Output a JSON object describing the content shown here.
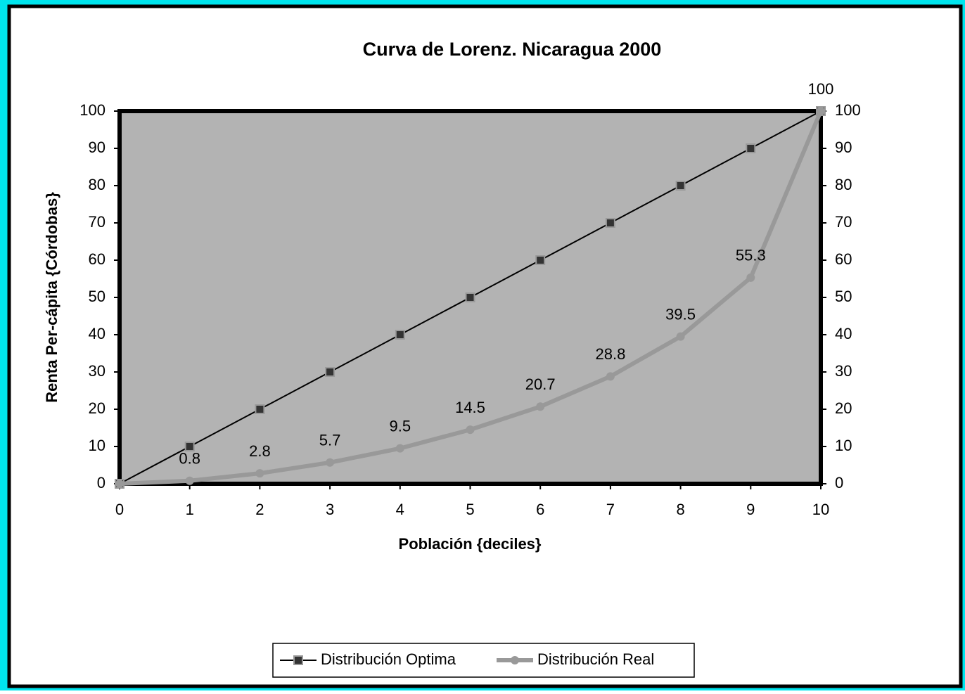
{
  "chart_data": {
    "type": "line",
    "title": "Curva de Lorenz. Nicaragua 2000",
    "x_label": "Población {deciles}",
    "y_label": "Renta Per-cápita {Córdobas}",
    "x": [
      0,
      1,
      2,
      3,
      4,
      5,
      6,
      7,
      8,
      9,
      10
    ],
    "series": [
      {
        "name": "Distribución Optima",
        "color": "#000000",
        "marker": "square",
        "values": [
          0,
          10,
          20,
          30,
          40,
          50,
          60,
          70,
          80,
          90,
          100
        ]
      },
      {
        "name": "Distribución Real",
        "color": "#999999",
        "marker": "circle",
        "values": [
          0,
          0.8,
          2.8,
          5.7,
          9.5,
          14.5,
          20.7,
          28.8,
          39.5,
          55.3,
          100
        ],
        "value_labels": [
          null,
          "0.8",
          "2.8",
          "5.7",
          "9.5",
          "14.5",
          "20.7",
          "28.8",
          "39.5",
          "55.3",
          "100"
        ]
      }
    ],
    "xlim": [
      0,
      10
    ],
    "xticks": [
      0,
      1,
      2,
      3,
      4,
      5,
      6,
      7,
      8,
      9,
      10
    ],
    "ylim": [
      0,
      100
    ],
    "yticks": [
      0,
      10,
      20,
      30,
      40,
      50,
      60,
      70,
      80,
      90,
      100
    ],
    "y2lim": [
      0,
      100
    ],
    "y2ticks": [
      0,
      10,
      20,
      30,
      40,
      50,
      60,
      70,
      80,
      90,
      100
    ],
    "plot_background": "#b3b3b3",
    "legend": "bottom"
  }
}
